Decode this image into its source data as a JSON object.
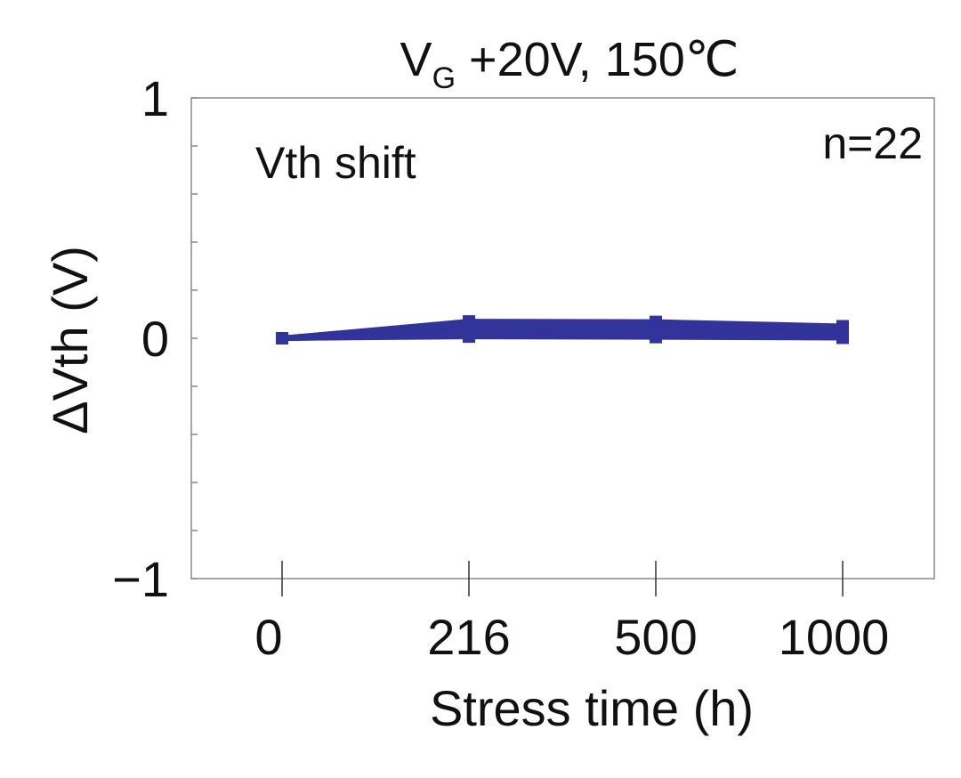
{
  "chart_data": {
    "type": "line",
    "title": "V_G +20V, 150℃",
    "title_main": "V",
    "title_sub": "G",
    "title_rest": " +20V, 150℃",
    "xlabel": "Stress time (h)",
    "ylabel": "ΔVth (V)",
    "annotation": "Vth shift",
    "count_label": "n=22",
    "categories": [
      "0",
      "216",
      "500",
      "1000"
    ],
    "ylim": [
      -1,
      1
    ],
    "yticks": [
      -1,
      -0.8,
      -0.6,
      -0.4,
      -0.2,
      0,
      0.2,
      0.4,
      0.6,
      0.8,
      1
    ],
    "ytick_labels": [
      {
        "v": 1,
        "t": "1"
      },
      {
        "v": 0,
        "t": "0"
      },
      {
        "v": -1,
        "t": "−1"
      }
    ],
    "color": "#32349a",
    "series": [
      [
        0,
        0.07,
        0.068,
        0.05
      ],
      [
        0,
        0.067,
        0.065,
        0.048
      ],
      [
        0,
        0.064,
        0.062,
        0.045
      ],
      [
        0,
        0.061,
        0.059,
        0.043
      ],
      [
        0,
        0.058,
        0.056,
        0.041
      ],
      [
        0,
        0.055,
        0.053,
        0.039
      ],
      [
        0,
        0.052,
        0.05,
        0.036
      ],
      [
        0,
        0.049,
        0.047,
        0.034
      ],
      [
        0,
        0.046,
        0.044,
        0.032
      ],
      [
        0,
        0.043,
        0.041,
        0.029
      ],
      [
        0,
        0.04,
        0.038,
        0.027
      ],
      [
        0,
        0.037,
        0.035,
        0.025
      ],
      [
        0,
        0.034,
        0.032,
        0.022
      ],
      [
        0,
        0.031,
        0.029,
        0.02
      ],
      [
        0,
        0.028,
        0.026,
        0.018
      ],
      [
        0,
        0.025,
        0.023,
        0.016
      ],
      [
        0,
        0.022,
        0.02,
        0.013
      ],
      [
        0,
        0.019,
        0.017,
        0.011
      ],
      [
        0,
        0.016,
        0.014,
        0.009
      ],
      [
        0,
        0.013,
        0.011,
        0.006
      ],
      [
        0,
        0.01,
        0.008,
        0.004
      ],
      [
        0,
        0.007,
        0.005,
        0.002
      ]
    ]
  }
}
